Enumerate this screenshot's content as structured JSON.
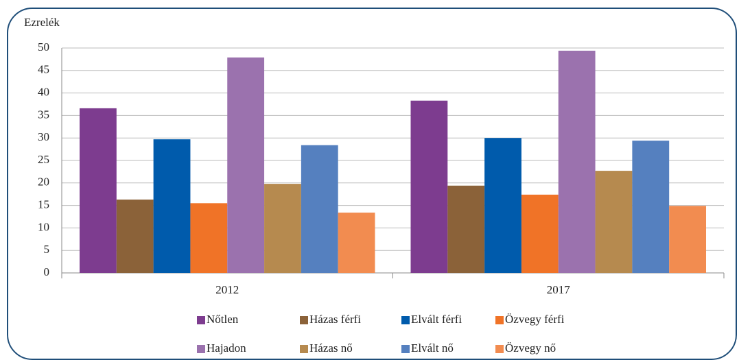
{
  "chart_data": {
    "type": "bar",
    "y_label": "Ezrelék",
    "categories": [
      "2012",
      "2017"
    ],
    "series": [
      {
        "name": "Nőtlen",
        "color": "#7d3c8f",
        "values": [
          36.6,
          38.3
        ]
      },
      {
        "name": "Házas férfi",
        "color": "#8b6239",
        "values": [
          16.3,
          19.4
        ]
      },
      {
        "name": "Elvált férfi",
        "color": "#005bac",
        "values": [
          29.7,
          30.0
        ]
      },
      {
        "name": "Özvegy férfi",
        "color": "#f07327",
        "values": [
          15.5,
          17.4
        ]
      },
      {
        "name": "Hajadon",
        "color": "#9b72ae",
        "values": [
          47.9,
          49.4
        ]
      },
      {
        "name": "Házas nő",
        "color": "#b68a4f",
        "values": [
          19.8,
          22.7
        ]
      },
      {
        "name": "Elvált nő",
        "color": "#5580bf",
        "values": [
          28.4,
          29.4
        ]
      },
      {
        "name": "Özvegy nő",
        "color": "#f28c50",
        "values": [
          13.4,
          14.9
        ]
      }
    ],
    "ylim": [
      0,
      50
    ],
    "yticks": [
      0,
      5,
      10,
      15,
      20,
      25,
      30,
      35,
      40,
      45,
      50
    ],
    "grid": true,
    "legend": "bottom"
  }
}
